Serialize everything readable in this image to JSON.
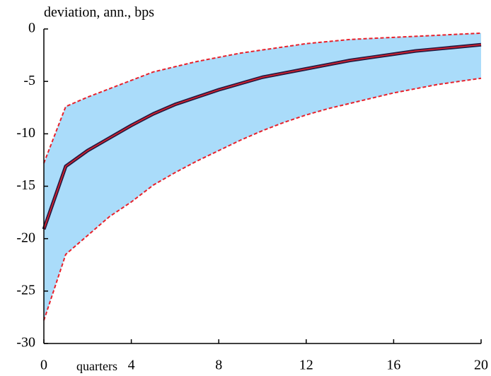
{
  "chart_data": {
    "type": "line",
    "ylabel": "deviation, ann., bps",
    "xlabel": "quarters",
    "x": [
      0,
      1,
      2,
      3,
      4,
      5,
      6,
      7,
      8,
      9,
      10,
      11,
      12,
      13,
      14,
      15,
      16,
      17,
      18,
      19,
      20
    ],
    "xlim": [
      0,
      20
    ],
    "xticks": [
      0,
      4,
      8,
      12,
      16,
      20
    ],
    "ylim": [
      -30,
      0
    ],
    "yticks": [
      0,
      -5,
      -10,
      -15,
      -20,
      -25,
      -30
    ],
    "band": {
      "color": "#aadcfa",
      "edge_color": "#e8202a",
      "upper": [
        -12.8,
        -7.4,
        -6.5,
        -5.7,
        -4.9,
        -4.1,
        -3.6,
        -3.1,
        -2.7,
        -2.3,
        -2.0,
        -1.7,
        -1.4,
        -1.2,
        -1.0,
        -0.9,
        -0.8,
        -0.7,
        -0.6,
        -0.5,
        -0.4
      ],
      "lower": [
        -27.8,
        -21.5,
        -19.7,
        -17.9,
        -16.5,
        -14.9,
        -13.7,
        -12.6,
        -11.6,
        -10.6,
        -9.7,
        -8.9,
        -8.2,
        -7.6,
        -7.1,
        -6.6,
        -6.1,
        -5.7,
        -5.3,
        -5.0,
        -4.7
      ]
    },
    "series": [
      {
        "color": "#2a1a40",
        "inner_color": "#e8202a",
        "values": [
          -19.1,
          -13.1,
          -11.6,
          -10.4,
          -9.2,
          -8.1,
          -7.2,
          -6.5,
          -5.8,
          -5.2,
          -4.6,
          -4.2,
          -3.8,
          -3.4,
          -3.0,
          -2.7,
          -2.4,
          -2.1,
          -1.9,
          -1.7,
          -1.5
        ]
      }
    ]
  }
}
